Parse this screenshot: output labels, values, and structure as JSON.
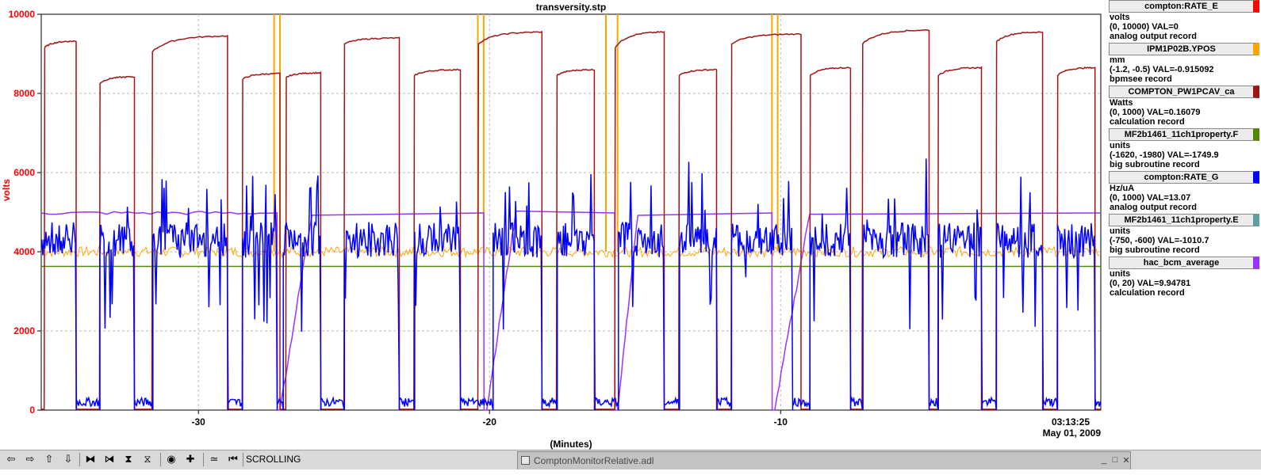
{
  "window_title": "transversity.stp",
  "chart_data": {
    "type": "line",
    "title": "transversity.stp",
    "ylabel": "volts",
    "xlabel": "(Minutes)",
    "ylim": [
      0,
      10000
    ],
    "xlim": [
      -35.4,
      1
    ],
    "y_ticks": [
      0,
      2000,
      4000,
      6000,
      8000,
      10000
    ],
    "y_tick_labels": [
      "0",
      "2000",
      "4000",
      "6000",
      "8000",
      "10000"
    ],
    "x_ticks": [
      -30,
      -20,
      -10
    ],
    "x_tick_labels": [
      "-30",
      "-20",
      "-10"
    ],
    "time_label": "03:13:25",
    "date_label": "May 01, 2009",
    "grid": true,
    "colors": {
      "axis_label": "#ff0000",
      "grid": "#bbbbbb"
    },
    "series": [
      {
        "color": "#a01414",
        "description": "COMPTON_PW1PCAV_ca",
        "pulses": [
          {
            "start": -35.3,
            "end": -34.2,
            "low": 9150,
            "high": 9320
          },
          {
            "start": -33.4,
            "end": -32.2,
            "low": 8250,
            "high": 8420
          },
          {
            "start": -31.6,
            "end": -29.0,
            "low": 9050,
            "high": 9450
          },
          {
            "start": -28.5,
            "end": -27.2,
            "low": 8350,
            "high": 8500
          },
          {
            "start": -27.0,
            "end": -25.8,
            "low": 8400,
            "high": 8520
          },
          {
            "start": -25.0,
            "end": -23.1,
            "low": 9250,
            "high": 9400
          },
          {
            "start": -22.6,
            "end": -21.0,
            "low": 8450,
            "high": 8600
          },
          {
            "start": -20.4,
            "end": -18.2,
            "low": 9250,
            "high": 9550
          },
          {
            "start": -17.7,
            "end": -16.4,
            "low": 8450,
            "high": 8600
          },
          {
            "start": -15.7,
            "end": -14.0,
            "low": 9150,
            "high": 9550
          },
          {
            "start": -13.5,
            "end": -12.2,
            "low": 8450,
            "high": 8600
          },
          {
            "start": -11.7,
            "end": -9.3,
            "low": 9250,
            "high": 9500
          },
          {
            "start": -9.0,
            "end": -7.6,
            "low": 8450,
            "high": 8650
          },
          {
            "start": -7.2,
            "end": -4.9,
            "low": 9250,
            "high": 9600
          },
          {
            "start": -4.6,
            "end": -3.1,
            "low": 8450,
            "high": 8650
          },
          {
            "start": -2.6,
            "end": -1.0,
            "low": 9300,
            "high": 9550
          },
          {
            "start": -0.5,
            "end": 0.8,
            "low": 8450,
            "high": 8650
          }
        ]
      },
      {
        "color": "#ffa500",
        "description": "IPM1P02B.YPOS",
        "baseline": 4000,
        "spikes": [
          -27.4,
          -27.2,
          -20.4,
          -20.2,
          -16.0,
          -15.6,
          -10.3,
          -10.1
        ]
      },
      {
        "color": "#9933ff",
        "description": "hac_bcm_average",
        "plateau": 4980,
        "ramps": [
          {
            "drop": -27.3,
            "bottom": -27.2,
            "rise_end": -26.1
          },
          {
            "drop": -20.2,
            "bottom": -20.1,
            "rise_end": -19.1
          },
          {
            "drop": -15.7,
            "bottom": -15.6,
            "rise_end": -14.9
          },
          {
            "drop": -10.3,
            "bottom": -10.2,
            "rise_end": -9.0
          }
        ]
      },
      {
        "color": "#4e8a00",
        "description": "MF2b1461_11ch1property.F",
        "constant": 3630
      },
      {
        "color": "#0000ff",
        "description": "compton:RATE_G",
        "beam_off": [
          [
            -34.2,
            -33.4
          ],
          [
            -32.2,
            -31.6
          ],
          [
            -29.0,
            -28.5
          ],
          [
            -27.3,
            -27.1
          ],
          [
            -25.8,
            -25.0
          ],
          [
            -23.1,
            -22.6
          ],
          [
            -21.0,
            -19.9
          ],
          [
            -18.2,
            -17.7
          ],
          [
            -16.4,
            -15.6
          ],
          [
            -14.0,
            -13.5
          ],
          [
            -12.2,
            -11.7
          ],
          [
            -9.6,
            -9.0
          ],
          [
            -7.6,
            -7.2
          ],
          [
            -4.9,
            -4.6
          ],
          [
            -3.1,
            -2.6
          ],
          [
            -1.0,
            -0.5
          ],
          [
            0.8,
            1.0
          ]
        ],
        "on_level": 4300,
        "off_level": 200
      }
    ]
  },
  "legend": [
    {
      "name": "compton:RATE_E",
      "color": "#ff0000",
      "unit": "volts",
      "range_val": "(0, 10000)  VAL=0",
      "record": "analog output record"
    },
    {
      "name": "IPM1P02B.YPOS",
      "color": "#ffa500",
      "unit": "mm",
      "range_val": "(-1.2, -0.5) VAL=-0.915092",
      "record": "bpmsee record"
    },
    {
      "name": "COMPTON_PW1PCAV_ca",
      "color": "#a01414",
      "unit": "Watts",
      "range_val": "(0, 1000) VAL=0.16079",
      "record": "calculation record"
    },
    {
      "name": "MF2b1461_11ch1property.F",
      "color": "#4e8a00",
      "unit": "units",
      "range_val": "(-1620, -1980)  VAL=-1749.9",
      "record": "big subroutine record"
    },
    {
      "name": "compton:RATE_G",
      "color": "#0000ff",
      "unit": "Hz/uA",
      "range_val": "(0, 1000) VAL=13.07",
      "record": "analog output record"
    },
    {
      "name": "MF2b1461_11ch1property.E",
      "color": "#5f9ea0",
      "unit": "units",
      "range_val": "(-750, -600) VAL=-1010.7",
      "record": "big subroutine record"
    },
    {
      "name": "hac_bcm_average",
      "color": "#9933ff",
      "unit": "units",
      "range_val": "(0, 20) VAL=9.94781",
      "record": "calculation record"
    }
  ],
  "toolbar": {
    "buttons": [
      {
        "glyph": "⇦",
        "icon": "pan-left-icon"
      },
      {
        "glyph": "⇨",
        "icon": "pan-right-icon"
      },
      {
        "glyph": "⇧",
        "icon": "pan-up-icon"
      },
      {
        "glyph": "⇩",
        "icon": "pan-down-icon"
      },
      {
        "glyph": "⧓",
        "icon": "zoom-in-x-icon"
      },
      {
        "glyph": "⧒",
        "icon": "zoom-out-x-icon"
      },
      {
        "glyph": "⧗",
        "icon": "zoom-in-y-icon"
      },
      {
        "glyph": "⧖",
        "icon": "zoom-out-y-icon"
      },
      {
        "glyph": "◉",
        "icon": "reset-icon"
      },
      {
        "glyph": "✚",
        "icon": "zoom-icon"
      },
      {
        "glyph": "≃",
        "icon": "auto-scale-icon"
      },
      {
        "glyph": "⏮",
        "icon": "scroll-mode-icon"
      }
    ],
    "status": "SCROLLING"
  },
  "taskbar": {
    "title": "ComptonMonitorRelative.adl",
    "minimize": "_",
    "maximize": "□",
    "close": "✕"
  }
}
